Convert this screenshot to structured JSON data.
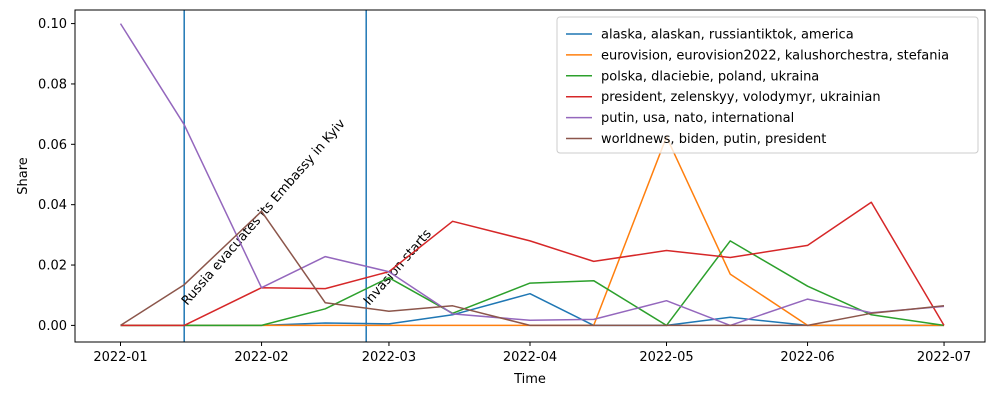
{
  "chart_data": {
    "type": "line",
    "xlabel": "Time",
    "ylabel": "Share",
    "x": [
      "2022-01-01",
      "2022-01-15",
      "2022-02-01",
      "2022-02-15",
      "2022-03-01",
      "2022-03-15",
      "2022-04-01",
      "2022-04-15",
      "2022-05-01",
      "2022-05-15",
      "2022-06-01",
      "2022-06-15",
      "2022-07-01"
    ],
    "xticks": [
      "2022-01",
      "2022-02",
      "2022-03",
      "2022-04",
      "2022-05",
      "2022-06",
      "2022-07"
    ],
    "yticks": [
      "0.00",
      "0.02",
      "0.04",
      "0.06",
      "0.08",
      "0.10"
    ],
    "ylim": [
      -0.0055,
      0.1045
    ],
    "xlim": [
      "2021-12-22",
      "2022-07-10"
    ],
    "grid": false,
    "legend_position": "top-right",
    "series": [
      {
        "name": "alaska, alaskan, russiantiktok, america",
        "color": "#1f77b4",
        "values": [
          0,
          0,
          0,
          0.0008,
          0.0005,
          0.0035,
          0.0105,
          0,
          0,
          0.0027,
          0,
          0,
          0
        ]
      },
      {
        "name": "eurovision, eurovision2022, kalushorchestra, stefania",
        "color": "#ff7f0e",
        "values": [
          0,
          0,
          0,
          0,
          0,
          0,
          0,
          0,
          0.0625,
          0.017,
          0,
          0,
          0
        ]
      },
      {
        "name": "polska, dlaciebie, poland, ukraina",
        "color": "#2ca02c",
        "values": [
          0,
          0,
          0,
          0.0055,
          0.0158,
          0.004,
          0.014,
          0.0148,
          0,
          0.028,
          0.013,
          0.0035,
          0
        ]
      },
      {
        "name": "president, zelenskyy, volodymyr, ukrainian",
        "color": "#d62728",
        "values": [
          0,
          0,
          0.0125,
          0.0122,
          0.0178,
          0.0345,
          0.028,
          0.0212,
          0.0248,
          0.0225,
          0.0265,
          0.0408,
          0
        ]
      },
      {
        "name": "putin, usa, nato, international",
        "color": "#9467bd",
        "values": [
          0.1,
          0.0665,
          0.0125,
          0.0228,
          0.0178,
          0.0038,
          0.0017,
          0.002,
          0.0082,
          0,
          0.0087,
          0.0042,
          0.0063
        ]
      },
      {
        "name": "worldnews, biden, putin, president",
        "color": "#8c564b",
        "values": [
          0,
          0.0135,
          0.0378,
          0.0075,
          0.0047,
          0.0065,
          0,
          0,
          0,
          0,
          0,
          0.004,
          0.0065
        ]
      }
    ],
    "annotations": [
      {
        "date": "2022-01-15",
        "text": "Russia evacuates its Embassy in Kyiv",
        "color": "#1f77b4"
      },
      {
        "date": "2022-02-24",
        "text": "Invasion starts",
        "color": "#1f77b4"
      }
    ]
  }
}
